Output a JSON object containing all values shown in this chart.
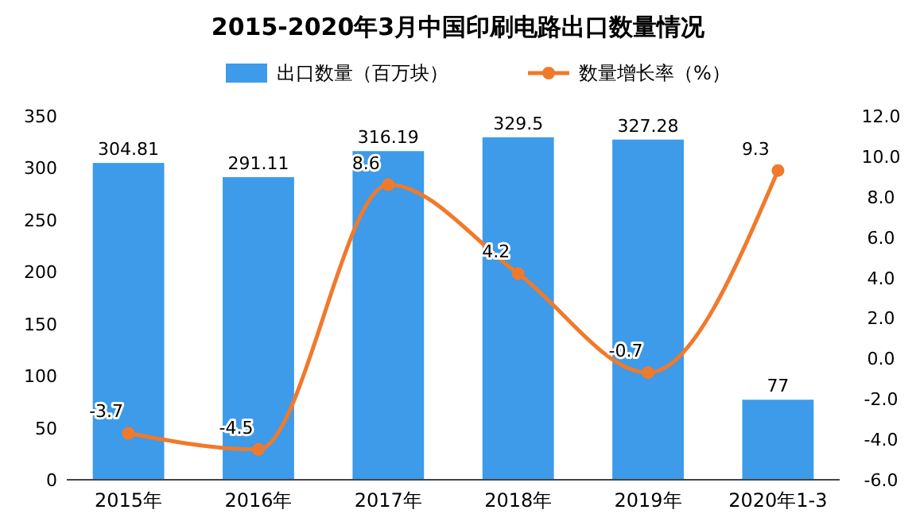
{
  "chart_data": {
    "type": "bar",
    "title": "2015-2020年3月中国印刷电路出口数量情况",
    "categories": [
      "2015年",
      "2016年",
      "2017年",
      "2018年",
      "2019年",
      "2020年1-3"
    ],
    "series": [
      {
        "name": "出口数量（百万块）",
        "color": "#3d9be9",
        "values": [
          304.81,
          291.11,
          316.19,
          329.5,
          327.28,
          77
        ]
      },
      {
        "name": "数量增长率（%）",
        "type": "line",
        "axis": "y2",
        "color": "#f07a2b",
        "values": [
          -3.7,
          -4.5,
          8.6,
          4.2,
          -0.7,
          9.3
        ]
      }
    ],
    "ylim": [
      0,
      350
    ],
    "yticks": [
      0,
      50,
      100,
      150,
      200,
      250,
      300,
      350
    ],
    "y2lim": [
      -6,
      12
    ],
    "y2ticks": [
      {
        "value": -6,
        "label": "-6.0"
      },
      {
        "value": -4,
        "label": "-4.0"
      },
      {
        "value": -2,
        "label": "-2.0"
      },
      {
        "value": 0,
        "label": "0.0"
      },
      {
        "value": 2,
        "label": "2.0"
      },
      {
        "value": 4,
        "label": "4.0"
      },
      {
        "value": 6,
        "label": "6.0"
      },
      {
        "value": 8,
        "label": "8.0"
      },
      {
        "value": 10,
        "label": "10.0"
      },
      {
        "value": 12,
        "label": "12.0"
      }
    ],
    "data_labels": true,
    "legend": "top",
    "marker": "circle",
    "grid": false
  }
}
